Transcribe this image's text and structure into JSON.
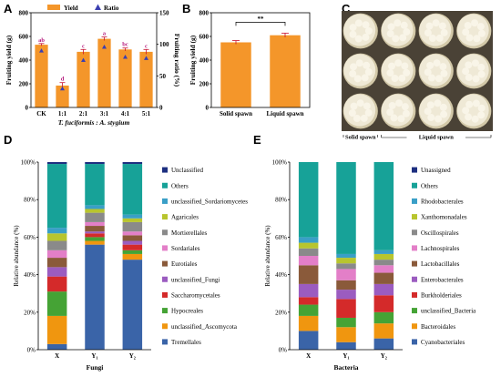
{
  "panels": {
    "A": "A",
    "B": "B",
    "C": "C",
    "D": "D",
    "E": "E"
  },
  "chart_data": [
    {
      "id": "A",
      "type": "bar",
      "categories": [
        "CK",
        "1:1",
        "2:1",
        "3:1",
        "4:1",
        "5:1"
      ],
      "series": [
        {
          "name": "Yield",
          "values": [
            530,
            185,
            470,
            580,
            490,
            470
          ],
          "errors": [
            10,
            25,
            20,
            15,
            12,
            20
          ],
          "letters": [
            "ab",
            "d",
            "c",
            "a",
            "bc",
            "c"
          ]
        },
        {
          "name": "Ratio",
          "values": [
            90,
            30,
            75,
            96,
            80,
            78
          ]
        }
      ],
      "xlabel": "T. fuciformis : A. stygium",
      "ylabel": "Fruiting yield (g)",
      "y2label": "Fruiting ratio (%)",
      "ylim": [
        0,
        800
      ],
      "yticks": [
        0,
        200,
        400,
        600,
        800
      ],
      "y2lim": [
        0,
        150
      ],
      "y2ticks": [
        0,
        50,
        100,
        150
      ],
      "colors": {
        "bar": "#f4962a",
        "dot": "#3b3fb0",
        "err": "#c8102e",
        "letters": "#b5197d"
      }
    },
    {
      "id": "B",
      "type": "bar",
      "categories": [
        "Solid spawn",
        "Liquid spawn"
      ],
      "values": [
        550,
        610
      ],
      "errors": [
        15,
        18
      ],
      "significance": "**",
      "ylabel": "Fruiting yield (g)",
      "ylim": [
        0,
        800
      ],
      "yticks": [
        0,
        200,
        400,
        600,
        800
      ],
      "colors": {
        "bar": "#f4962a",
        "err": "#c8102e"
      }
    },
    {
      "id": "D",
      "type": "bar",
      "stacked": true,
      "categories": [
        "X",
        "Y₁",
        "Y₂"
      ],
      "xlabel": "Fungi",
      "ylabel": "Relative abundance (%)",
      "yticks": [
        "0%",
        "20%",
        "40%",
        "60%",
        "80%",
        "100%"
      ],
      "series": [
        {
          "name": "Tremellales",
          "color": "#3a64a8",
          "values": [
            3,
            56,
            48
          ]
        },
        {
          "name": "unclassified_Ascomycota",
          "color": "#f0960f",
          "values": [
            15,
            2,
            3
          ]
        },
        {
          "name": "Hypocreales",
          "color": "#45a335",
          "values": [
            13,
            2,
            2
          ]
        },
        {
          "name": "Saccharomycetales",
          "color": "#d42a2a",
          "values": [
            8,
            2,
            3
          ]
        },
        {
          "name": "unclassified_Fungi",
          "color": "#9b5cc0",
          "values": [
            5,
            1,
            2
          ]
        },
        {
          "name": "Eurotiales",
          "color": "#8a5a3a",
          "values": [
            5,
            3,
            3
          ]
        },
        {
          "name": "Sordariales",
          "color": "#e37fc8",
          "values": [
            4,
            2,
            2
          ]
        },
        {
          "name": "Mortierellales",
          "color": "#8a8a8a",
          "values": [
            5,
            5,
            5
          ]
        },
        {
          "name": "Agaricales",
          "color": "#b8c52e",
          "values": [
            4,
            2,
            2
          ]
        },
        {
          "name": "unclassified_Sordariomycetes",
          "color": "#3a9fc7",
          "values": [
            3,
            2,
            2
          ]
        },
        {
          "name": "Others",
          "color": "#17a298",
          "values": [
            34,
            22,
            27
          ]
        },
        {
          "name": "Unclassified",
          "color": "#1d2f80",
          "values": [
            1,
            1,
            1
          ]
        }
      ]
    },
    {
      "id": "E",
      "type": "bar",
      "stacked": true,
      "categories": [
        "X",
        "Y₁",
        "Y₂"
      ],
      "xlabel": "Bacteria",
      "ylabel": "Relative abundance (%)",
      "yticks": [
        "0%",
        "20%",
        "40%",
        "60%",
        "80%",
        "100%"
      ],
      "series": [
        {
          "name": "Cyanobacteriales",
          "color": "#3a64a8",
          "values": [
            10,
            4,
            6
          ]
        },
        {
          "name": "Bacteroidales",
          "color": "#f0960f",
          "values": [
            8,
            8,
            8
          ]
        },
        {
          "name": "unclassified_Bacteria",
          "color": "#45a335",
          "values": [
            6,
            5,
            6
          ]
        },
        {
          "name": "Burkholderiales",
          "color": "#d42a2a",
          "values": [
            4,
            10,
            9
          ]
        },
        {
          "name": "Enterobacterales",
          "color": "#9b5cc0",
          "values": [
            7,
            5,
            6
          ]
        },
        {
          "name": "Lactobacillales",
          "color": "#8a5a3a",
          "values": [
            10,
            5,
            6
          ]
        },
        {
          "name": "Lachnospirales",
          "color": "#e37fc8",
          "values": [
            5,
            6,
            4
          ]
        },
        {
          "name": "Oscillospirales",
          "color": "#8a8a8a",
          "values": [
            4,
            3,
            3
          ]
        },
        {
          "name": "Xanthomonadales",
          "color": "#b8c52e",
          "values": [
            3,
            3,
            3
          ]
        },
        {
          "name": "Rhodobacterales",
          "color": "#3a9fc7",
          "values": [
            3,
            2,
            2
          ]
        },
        {
          "name": "Others",
          "color": "#17a298",
          "values": [
            40,
            49,
            47
          ]
        },
        {
          "name": "Unassigned",
          "color": "#1d2f80",
          "values": [
            0,
            0,
            0
          ]
        }
      ]
    }
  ],
  "photo": {
    "label_solid": "Solid spawn",
    "label_liquid": "Liquid spawn",
    "colors": {
      "background": "#4a4236",
      "fruit": "#efe9d6",
      "fruit_shadow": "#d2c8a8"
    }
  }
}
